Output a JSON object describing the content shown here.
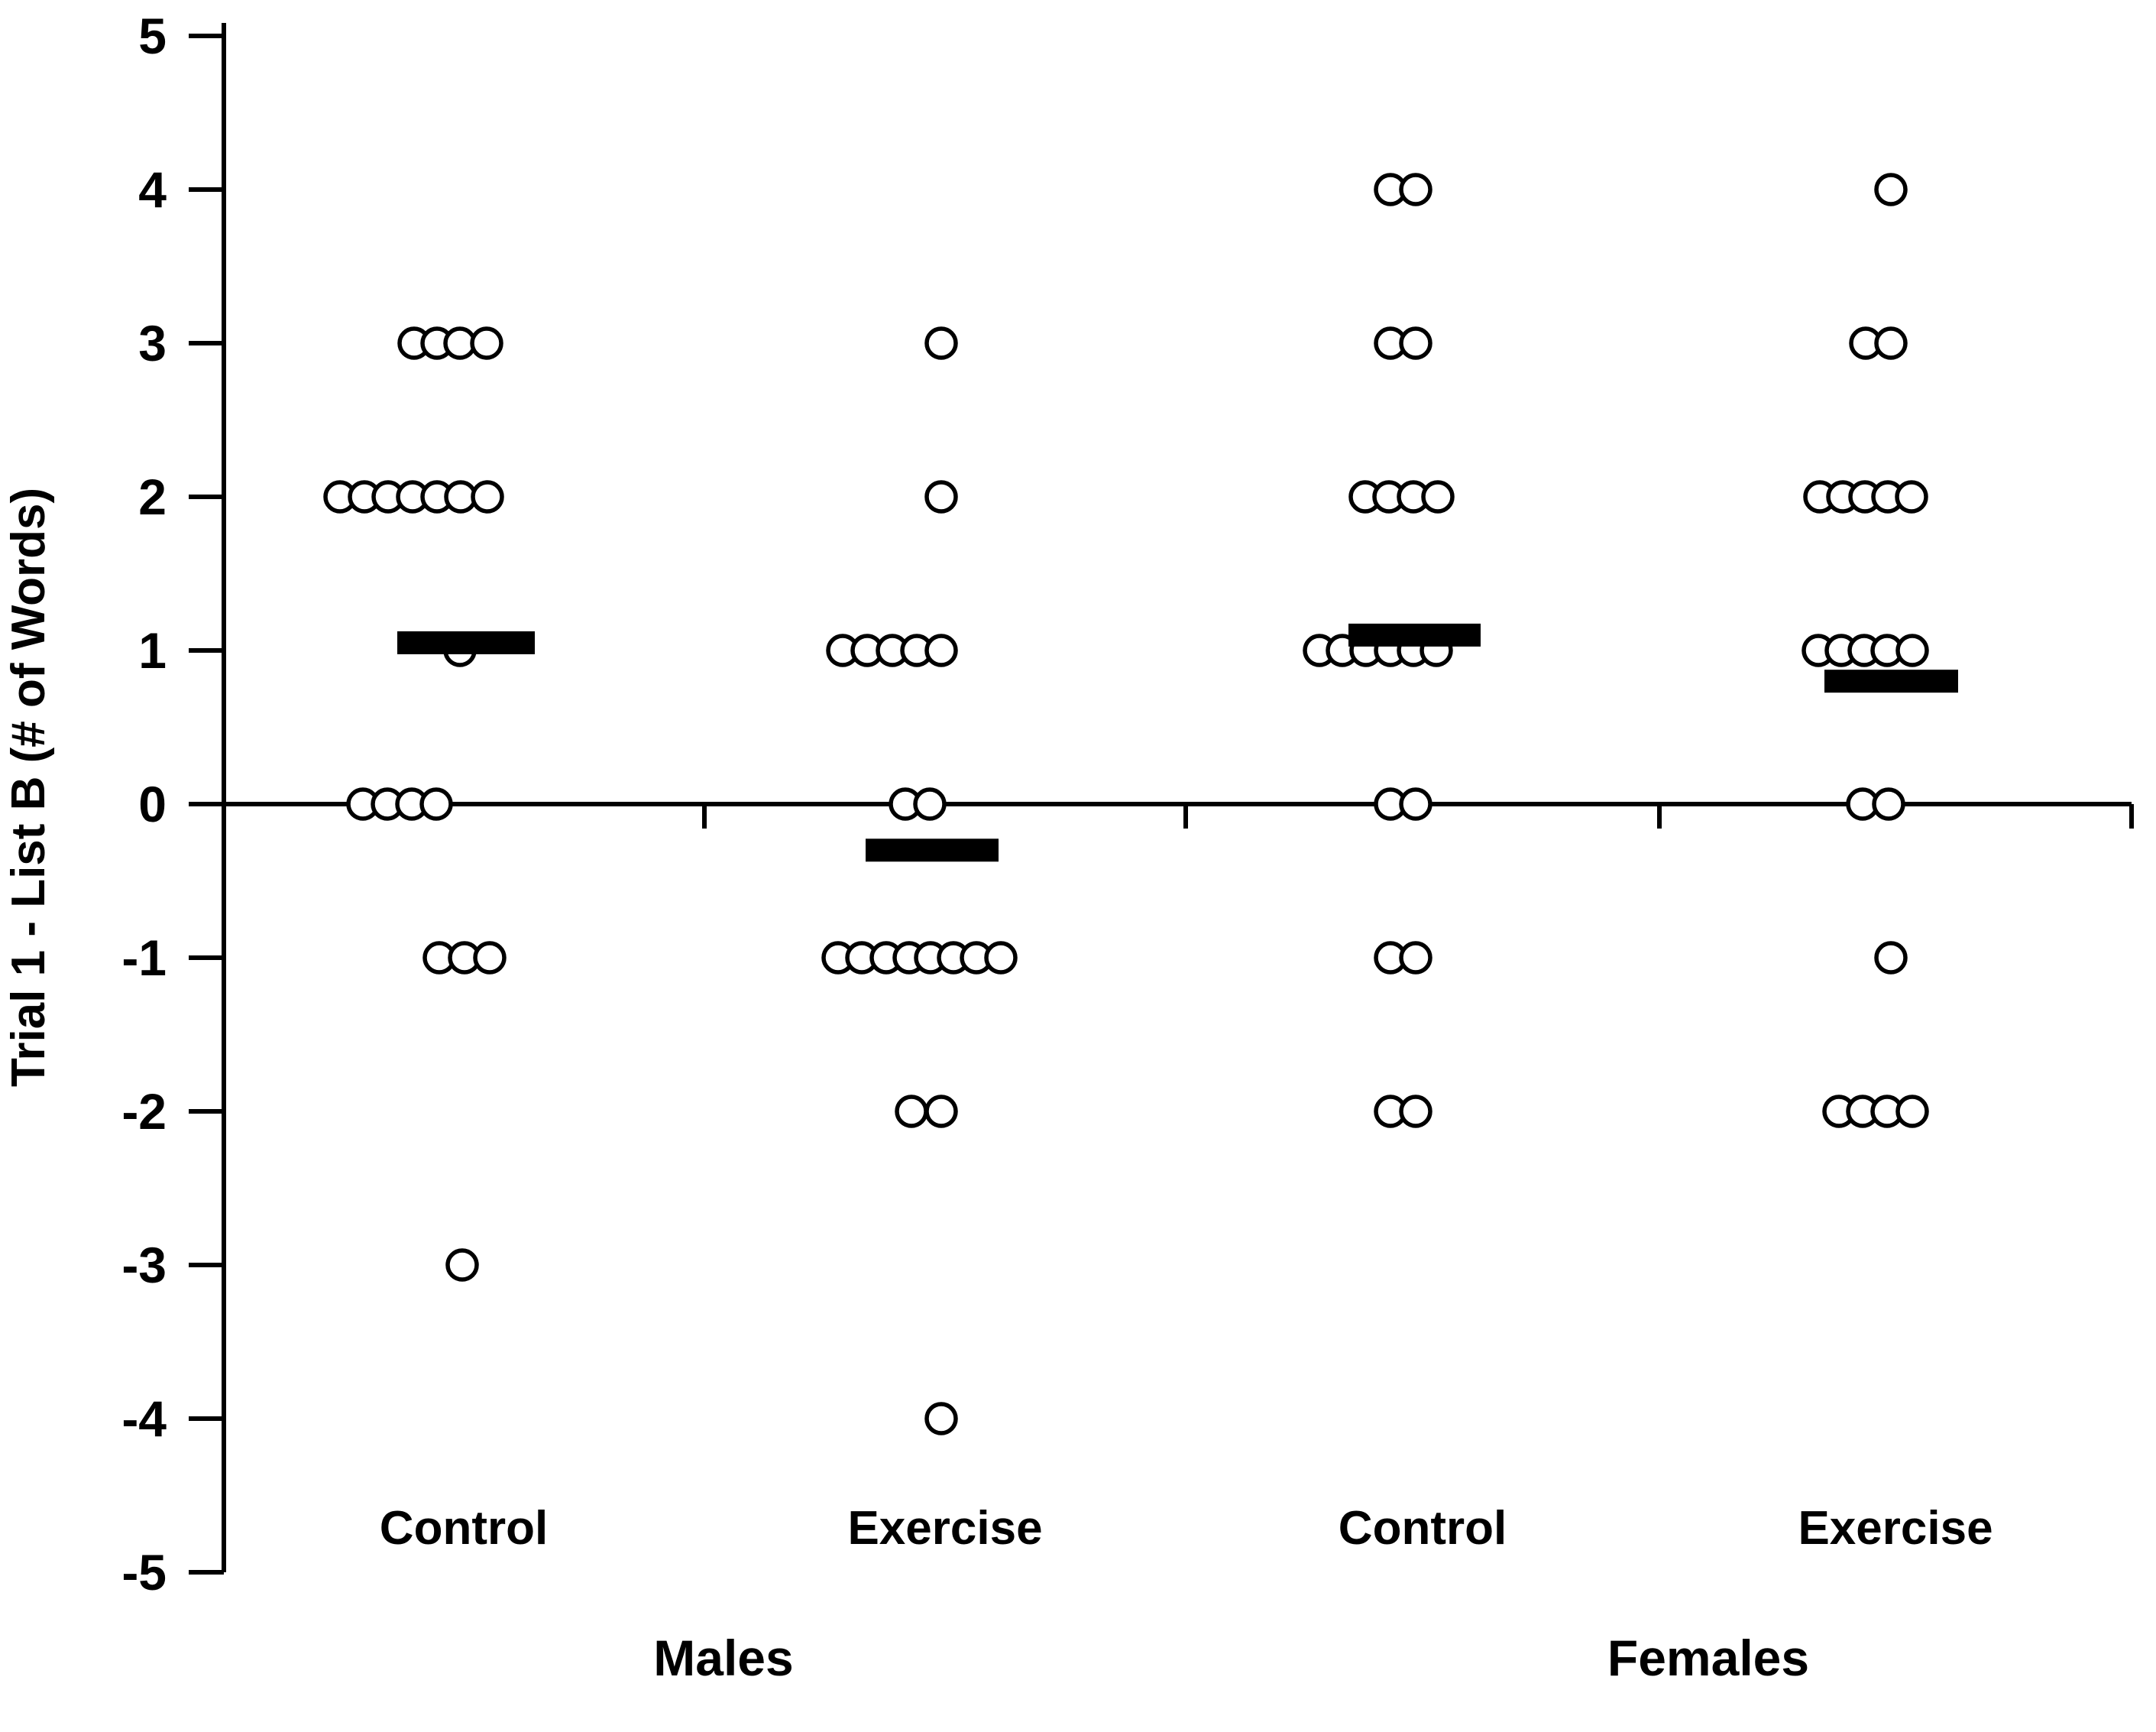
{
  "chart_data": {
    "type": "scatter",
    "subtype": "dot-plot-with-mean-bars",
    "title": "",
    "xlabel": "",
    "ylabel": "Trial 1 - List B (# of Words)",
    "ylim": [
      -5,
      5
    ],
    "yticks": [
      5,
      4,
      3,
      2,
      1,
      0,
      -1,
      -2,
      -3,
      -4,
      -5
    ],
    "grid": false,
    "legend": null,
    "point_style": {
      "shape": "open-circle",
      "fill": "#ffffff",
      "stroke": "#000000"
    },
    "mean_marker_style": {
      "shape": "filled-horizontal-bar",
      "color": "#000000"
    },
    "colors": {
      "ink": "#000000",
      "background": "#ffffff"
    },
    "sex_group_labels": [
      "Males",
      "Females"
    ],
    "groups": [
      {
        "sex": "Males",
        "condition": "Control",
        "n": 20,
        "mean": 1.05,
        "counts": {
          "3": 4,
          "2": 7,
          "1": 1,
          "0": 4,
          "-1": 3,
          "-3": 1
        },
        "rows": [
          {
            "value": 3,
            "x": [
              542,
              572,
              602,
              637
            ]
          },
          {
            "value": 2,
            "x": [
              445,
              477,
              508,
              540,
              572,
              603,
              638
            ]
          },
          {
            "value": 1,
            "x": [
              602
            ]
          },
          {
            "value": 0,
            "x": [
              475,
              507,
              539,
              571
            ]
          },
          {
            "value": -1,
            "x": [
              575,
              608,
              641
            ]
          },
          {
            "value": -3,
            "x": [
              605
            ]
          }
        ],
        "mean_bar": {
          "x1": 520,
          "x2": 700
        }
      },
      {
        "sex": "Males",
        "condition": "Exercise",
        "n": 20,
        "mean": -0.3,
        "counts": {
          "3": 1,
          "2": 1,
          "1": 5,
          "0": 2,
          "-1": 8,
          "-2": 2,
          "-4": 1
        },
        "rows": [
          {
            "value": 3,
            "x": [
              1232
            ]
          },
          {
            "value": 2,
            "x": [
              1232
            ]
          },
          {
            "value": 1,
            "x": [
              1103,
              1135,
              1168,
              1200,
              1232
            ]
          },
          {
            "value": 0,
            "x": [
              1185,
              1217
            ]
          },
          {
            "value": -1,
            "x": [
              1097,
              1128,
              1160,
              1190,
              1218,
              1248,
              1278,
              1310
            ]
          },
          {
            "value": -2,
            "x": [
              1193,
              1232
            ]
          },
          {
            "value": -4,
            "x": [
              1232
            ]
          }
        ],
        "mean_bar": {
          "x1": 1133,
          "x2": 1307
        }
      },
      {
        "sex": "Females",
        "condition": "Control",
        "n": 20,
        "mean": 1.1,
        "counts": {
          "4": 2,
          "3": 2,
          "2": 4,
          "1": 6,
          "0": 2,
          "-1": 2,
          "-2": 2
        },
        "rows": [
          {
            "value": 4,
            "x": [
              1820,
              1853
            ]
          },
          {
            "value": 3,
            "x": [
              1820,
              1853
            ]
          },
          {
            "value": 2,
            "x": [
              1787,
              1818,
              1850,
              1882
            ]
          },
          {
            "value": 1,
            "x": [
              1727,
              1757,
              1788,
              1820,
              1850,
              1880
            ]
          },
          {
            "value": 0,
            "x": [
              1820,
              1853
            ]
          },
          {
            "value": -1,
            "x": [
              1820,
              1853
            ]
          },
          {
            "value": -2,
            "x": [
              1820,
              1853
            ]
          }
        ],
        "mean_bar": {
          "x1": 1765,
          "x2": 1938
        }
      },
      {
        "sex": "Females",
        "condition": "Exercise",
        "n": 20,
        "mean": 0.8,
        "counts": {
          "4": 1,
          "3": 2,
          "2": 5,
          "1": 5,
          "0": 2,
          "-1": 1,
          "-2": 4
        },
        "rows": [
          {
            "value": 4,
            "x": [
              2475
            ]
          },
          {
            "value": 3,
            "x": [
              2442,
              2475
            ]
          },
          {
            "value": 2,
            "x": [
              2382,
              2412,
              2441,
              2471,
              2502
            ]
          },
          {
            "value": 1,
            "x": [
              2380,
              2410,
              2440,
              2470,
              2503
            ]
          },
          {
            "value": 0,
            "x": [
              2438,
              2472
            ]
          },
          {
            "value": -1,
            "x": [
              2475
            ]
          },
          {
            "value": -2,
            "x": [
              2407,
              2438,
              2470,
              2503
            ]
          }
        ],
        "mean_bar": {
          "x1": 2388,
          "x2": 2563
        }
      }
    ]
  }
}
